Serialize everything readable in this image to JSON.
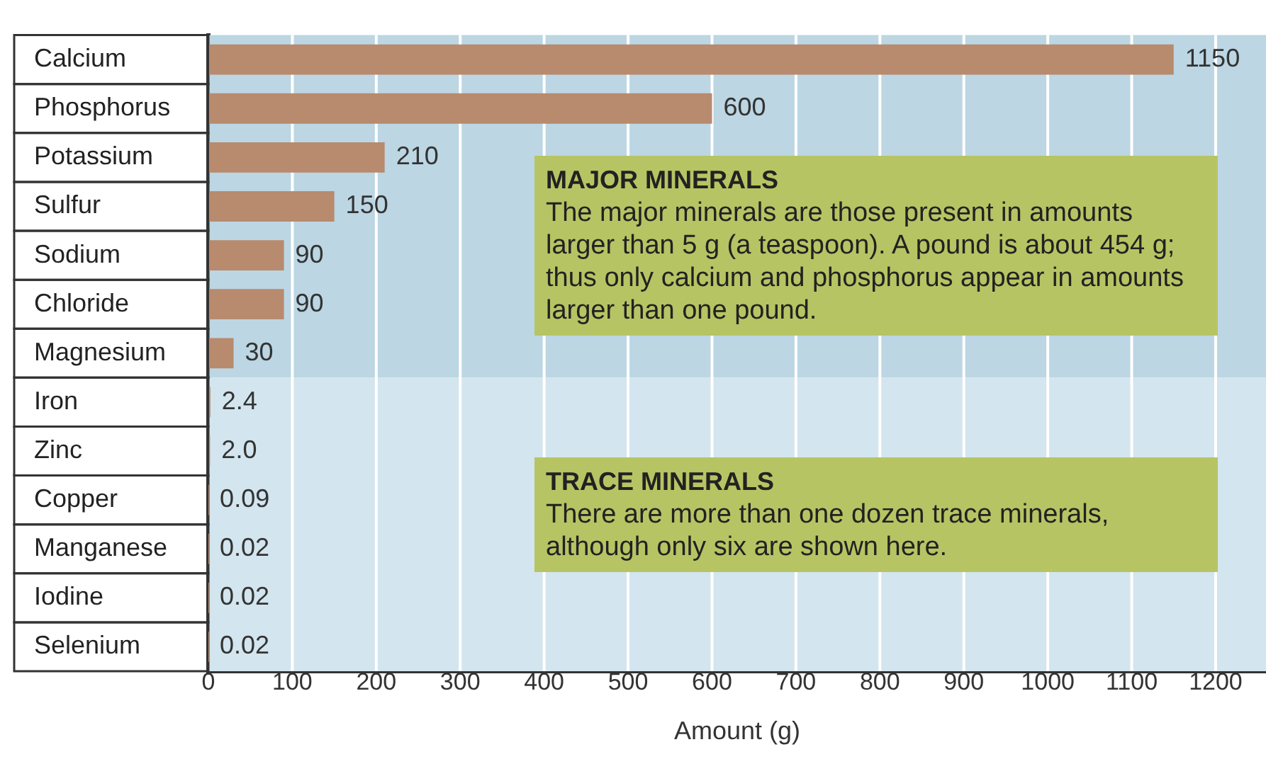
{
  "chart_data": {
    "type": "bar",
    "orientation": "horizontal",
    "xlabel": "Amount (g)",
    "categories": [
      "Calcium",
      "Phosphorus",
      "Potassium",
      "Sulfur",
      "Sodium",
      "Chloride",
      "Magnesium",
      "Iron",
      "Zinc",
      "Copper",
      "Manganese",
      "Iodine",
      "Selenium"
    ],
    "values": [
      1150,
      600,
      210,
      150,
      90,
      90,
      30,
      2.4,
      2.0,
      0.09,
      0.02,
      0.02,
      0.02
    ],
    "value_labels": [
      "1150",
      "600",
      "210",
      "150",
      "90",
      "90",
      "30",
      "2.4",
      "2.0",
      "0.09",
      "0.02",
      "0.02",
      "0.02"
    ],
    "color": "#b88a6e",
    "xlim": [
      0,
      1260
    ],
    "xticks": [
      0,
      100,
      200,
      300,
      400,
      500,
      600,
      700,
      800,
      900,
      1000,
      1100,
      1200
    ],
    "grid": "x",
    "legend": false,
    "bands": [
      {
        "axis": "y",
        "from": "Calcium",
        "to": "Magnesium",
        "label": "MAJOR MINERALS",
        "color": "#bcd6e3"
      },
      {
        "axis": "y",
        "from": "Iron",
        "to": "Selenium",
        "label": "TRACE MINERALS",
        "color": "#d3e5ee"
      }
    ],
    "annotations": [
      "The major minerals are those present in amounts larger than 5 g (a teaspoon). A pound is about 454 g; thus only calcium and phosphorus appear in amounts larger than one pound.",
      "There are more than one dozen trace minerals, although only six are shown here."
    ]
  }
}
